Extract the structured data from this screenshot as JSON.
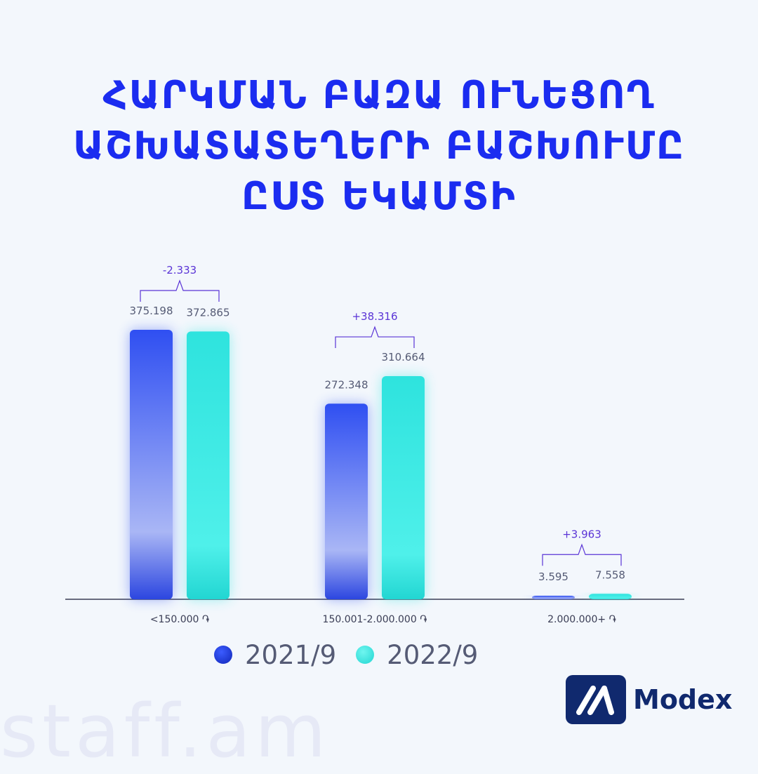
{
  "title_lines": [
    "ՀԱՐԿՄԱՆ ԲԱԶԱ ՈՒՆԵՑՈՂ",
    "ԱՇԽԱՏԱՏԵՂԵՐԻ ԲԱՇԽՈՒՄԸ",
    "ԸՍՏ ԵԿԱՄՏԻ"
  ],
  "chart_data": {
    "type": "bar",
    "categories": [
      "<150.000 ֏",
      "150.001-2.000.000 ֏",
      "2.000.000+ ֏"
    ],
    "series": [
      {
        "name": "2021/9",
        "values": [
          375198,
          272348,
          3595
        ],
        "labels": [
          "375.198",
          "272.348",
          "3.595"
        ],
        "color": "#2f4ff2"
      },
      {
        "name": "2022/9",
        "values": [
          372865,
          310664,
          7558
        ],
        "labels": [
          "372.865",
          "310.664",
          "7.558"
        ],
        "color": "#2ee3de"
      }
    ],
    "differences": [
      "-2.333",
      "+38.316",
      "+3.963"
    ],
    "ylim": [
      0,
      400000
    ],
    "grid": false,
    "legend_position": "bottom"
  },
  "colors": {
    "title": "#1b2cf0",
    "axis": "#3a3d55",
    "value_label": "#555b75",
    "difference": "#5a34d6",
    "brand": "#10296e"
  },
  "logo": {
    "name": "Modex",
    "icon": "modex-slash-icon"
  },
  "watermark": "staff.am"
}
